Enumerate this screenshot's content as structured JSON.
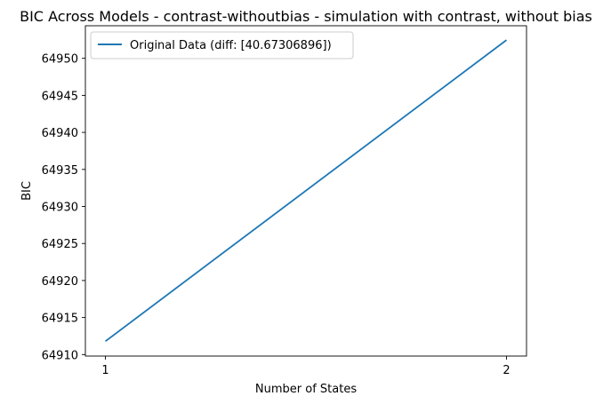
{
  "chart_data": {
    "type": "line",
    "title": "BIC Across Models - contrast-withoutbias - simulation with contrast, without bias",
    "xlabel": "Number of States",
    "ylabel": "BIC",
    "x": [
      1,
      2
    ],
    "xticks": [
      "1",
      "2"
    ],
    "yticks": [
      64910,
      64915,
      64920,
      64925,
      64930,
      64935,
      64940,
      64945,
      64950
    ],
    "ylim": [
      64909.8,
      64954.4
    ],
    "series": [
      {
        "name": "Original Data (diff: [40.67306896])",
        "values": [
          64911.8,
          64952.47
        ],
        "color": "#1f77b4"
      }
    ],
    "legend_position": "upper-left",
    "grid": false
  }
}
